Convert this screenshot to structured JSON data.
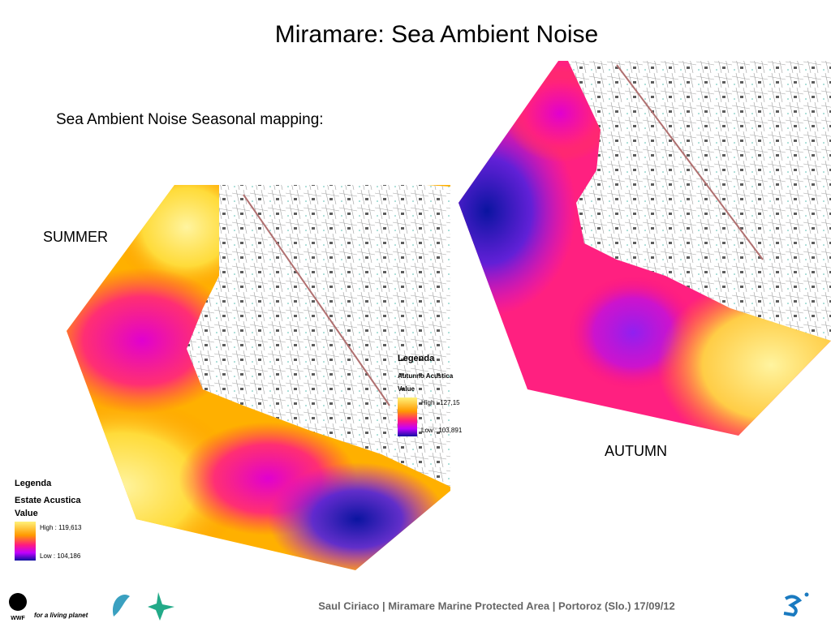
{
  "header": {
    "title": "Miramare: Sea Ambient Noise",
    "subtitle": "Sea Ambient Noise Seasonal mapping:"
  },
  "maps": [
    {
      "label": "SUMMER",
      "legend": {
        "title": "Legenda",
        "layer": "Estate Acustica",
        "field": "Value",
        "high": "High : 119,613",
        "low": "Low : 104,186"
      }
    },
    {
      "label": "AUTUMN",
      "legend": {
        "title": "Legenda",
        "layer": "Autunno Acustica",
        "field": "Value",
        "high": "High : 127,15",
        "low": "Low : 103,891"
      }
    }
  ],
  "footer": {
    "wwf": "WWF",
    "tagline": "for a living planet",
    "text": "Saul Ciriaco | Miramare Marine Protected Area |  Portoroz (Slo.) 17/09/12"
  }
}
